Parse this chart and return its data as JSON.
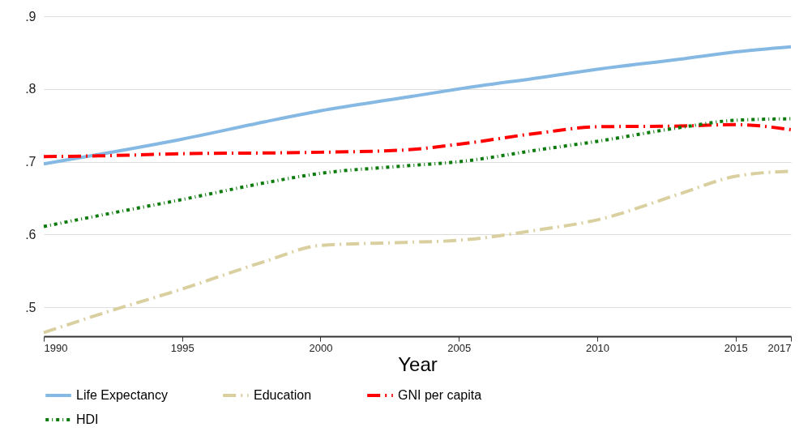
{
  "chart_data": {
    "type": "line",
    "xlabel": "Year",
    "x": [
      1990,
      1992,
      1995,
      1998,
      2000,
      2003,
      2005,
      2008,
      2010,
      2013,
      2015,
      2017
    ],
    "series": [
      {
        "name": "Life Expectancy",
        "color": "#85b9e3",
        "line_style": "solid",
        "values": [
          0.697,
          0.71,
          0.731,
          0.755,
          0.77,
          0.788,
          0.8,
          0.816,
          0.827,
          0.841,
          0.851,
          0.858
        ]
      },
      {
        "name": "Education",
        "color": "#d9cf9f",
        "line_style": "dashed",
        "values": [
          0.465,
          0.49,
          0.525,
          0.563,
          0.585,
          0.589,
          0.592,
          0.607,
          0.62,
          0.656,
          0.68,
          0.687
        ]
      },
      {
        "name": "GNI per capita",
        "color": "#ff0000",
        "line_style": "dashed",
        "values": [
          0.707,
          0.708,
          0.711,
          0.712,
          0.713,
          0.716,
          0.724,
          0.74,
          0.748,
          0.749,
          0.751,
          0.744
        ]
      },
      {
        "name": "HDI",
        "color": "#0a7a0a",
        "line_style": "dotted",
        "values": [
          0.611,
          0.626,
          0.648,
          0.671,
          0.684,
          0.694,
          0.7,
          0.717,
          0.728,
          0.747,
          0.757,
          0.759
        ]
      }
    ],
    "xlim": [
      1990,
      2017
    ],
    "xticks": [
      1990,
      1995,
      2000,
      2005,
      2010,
      2015,
      2017
    ],
    "ylim": [
      0.46,
      0.9
    ],
    "yticks": [
      {
        "value": 0.5,
        "label": ".5"
      },
      {
        "value": 0.6,
        "label": ".6"
      },
      {
        "value": 0.7,
        "label": ".7"
      },
      {
        "value": 0.8,
        "label": ".8"
      },
      {
        "value": 0.9,
        "label": ".9"
      }
    ],
    "grid": "y",
    "legend": "bottom"
  }
}
